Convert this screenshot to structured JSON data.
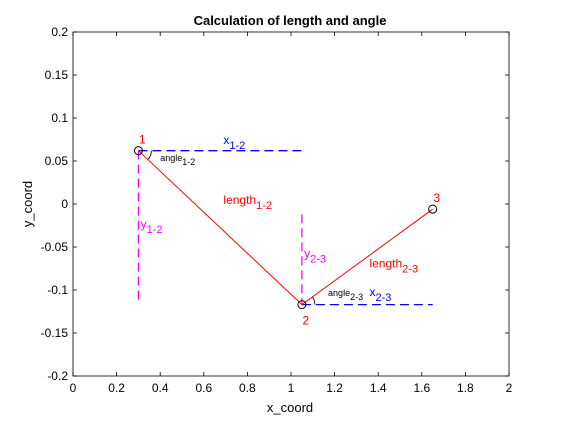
{
  "chart_data": {
    "type": "line",
    "title": "Calculation of length and angle",
    "xlabel": "x_coord",
    "ylabel": "y_coord",
    "xlim": [
      0,
      2
    ],
    "ylim": [
      -0.2,
      0.2
    ],
    "xticks": [
      0,
      0.2,
      0.4,
      0.6,
      0.8,
      1,
      1.2,
      1.4,
      1.6,
      1.8,
      2
    ],
    "xtick_labels": [
      "0",
      "0.2",
      "0.4",
      "0.6",
      "0.8",
      "1",
      "1.2",
      "1.4",
      "1.6",
      "1.8",
      "2"
    ],
    "yticks": [
      0.2,
      0.15,
      0.1,
      0.05,
      0,
      -0.05,
      -0.1,
      -0.15,
      -0.2
    ],
    "ytick_labels": [
      "0.2",
      "0.15",
      "0.1",
      "0.05",
      "0",
      "-0.05",
      "-0.1",
      "-0.15",
      "-0.2"
    ],
    "grid": false,
    "points": [
      {
        "label": "1",
        "x": 0.3,
        "y": 0.062
      },
      {
        "label": "2",
        "x": 1.05,
        "y": -0.117
      },
      {
        "label": "3",
        "x": 1.65,
        "y": -0.006
      }
    ],
    "segments": [
      {
        "from": 0,
        "to": 1,
        "color": "#ff0000"
      },
      {
        "from": 1,
        "to": 2,
        "color": "#ff0000"
      }
    ],
    "dashed_lines": [
      {
        "x": [
          0.3,
          1.05
        ],
        "y": [
          0.062,
          0.062
        ],
        "color": "#0000ff"
      },
      {
        "x": [
          0.3,
          0.3
        ],
        "y": [
          0.062,
          -0.117
        ],
        "color": "#ff00ff"
      },
      {
        "x": [
          1.05,
          1.65
        ],
        "y": [
          -0.117,
          -0.117
        ],
        "color": "#0000ff"
      },
      {
        "x": [
          1.05,
          1.05
        ],
        "y": [
          -0.012,
          -0.117
        ],
        "color": "#ff00ff"
      }
    ],
    "annotations": [
      {
        "main": "x",
        "sub": "1-2",
        "x": 0.69,
        "y": 0.07,
        "color": "#0000ff",
        "size": "normal"
      },
      {
        "main": "y",
        "sub": "1-2",
        "x": 0.31,
        "y": -0.028,
        "color": "#ff00ff",
        "size": "normal"
      },
      {
        "main": "length",
        "sub": "1-2",
        "x": 0.69,
        "y": 0.0,
        "color": "#ff0000",
        "size": "normal"
      },
      {
        "main": "angle",
        "sub": "1-2",
        "x": 0.4,
        "y": 0.05,
        "color": "#000000",
        "size": "small"
      },
      {
        "main": "x",
        "sub": "2-3",
        "x": 1.36,
        "y": -0.107,
        "color": "#0000ff",
        "size": "normal"
      },
      {
        "main": "y",
        "sub": "2-3",
        "x": 1.06,
        "y": -0.062,
        "color": "#ff00ff",
        "size": "normal"
      },
      {
        "main": "length",
        "sub": "2-3",
        "x": 1.36,
        "y": -0.074,
        "color": "#ff0000",
        "size": "normal"
      },
      {
        "main": "angle",
        "sub": "2-3",
        "x": 1.17,
        "y": -0.107,
        "color": "#000000",
        "size": "small"
      }
    ],
    "colors": {
      "segment": "#ff0000",
      "horizontal": "#0000ff",
      "vertical": "#ff00ff",
      "point_label": "#ff0000"
    }
  }
}
